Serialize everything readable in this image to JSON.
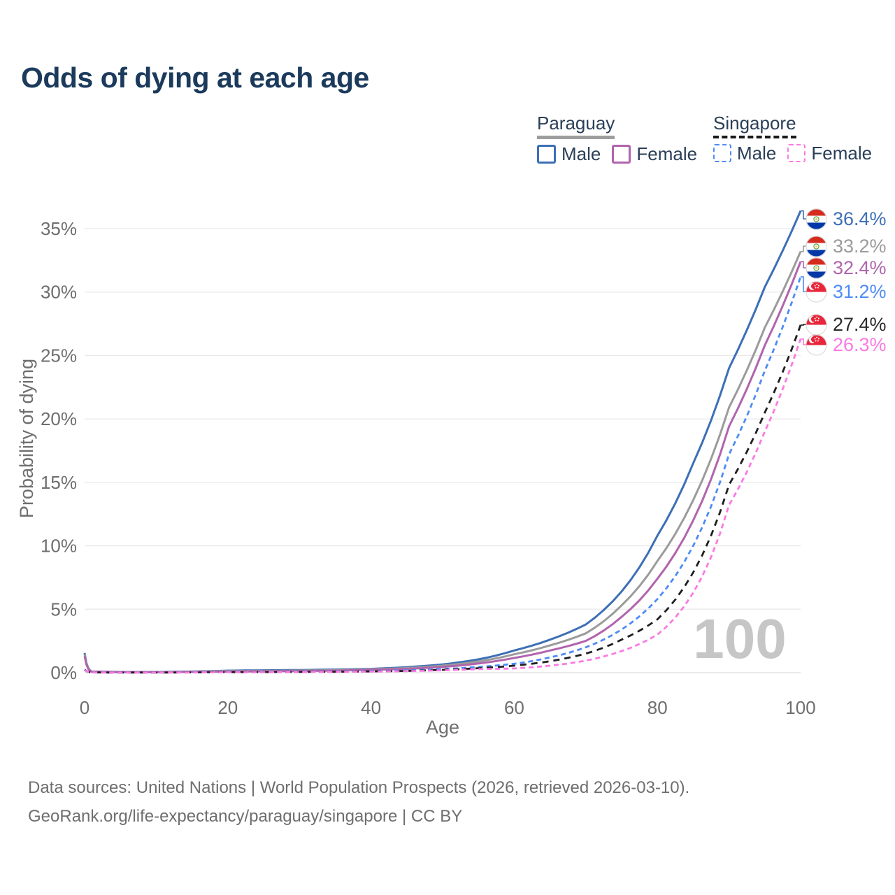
{
  "title": "Odds of dying at each age",
  "watermark": "100",
  "legend": {
    "groups": [
      {
        "country": "Paraguay",
        "line_style": "solid",
        "underline_color": "#9e9e9e",
        "items": [
          {
            "label": "Male",
            "color": "#3d6fb6"
          },
          {
            "label": "Female",
            "color": "#b164ad"
          }
        ]
      },
      {
        "country": "Singapore",
        "line_style": "dashed",
        "underline_color": "#1a1a1a",
        "items": [
          {
            "label": "Male",
            "color": "#4e8cf6"
          },
          {
            "label": "Female",
            "color": "#fb7ae3"
          }
        ]
      }
    ]
  },
  "footer": {
    "line1": "Data sources: United Nations | World Population Prospects (2026, retrieved 2026-03-10).",
    "line2": "GeoRank.org/life-expectancy/paraguay/singapore | CC BY"
  },
  "chart_data": {
    "type": "line",
    "title": "Odds of dying at each age",
    "xlabel": "Age",
    "ylabel": "Probability of dying",
    "xlim": [
      0,
      100
    ],
    "ylim": [
      0,
      37
    ],
    "x_ticks": [
      0,
      20,
      40,
      60,
      80,
      100
    ],
    "y_ticks": [
      0,
      5,
      10,
      15,
      20,
      25,
      30,
      35
    ],
    "y_tick_suffix": "%",
    "grid": "horizontal",
    "legend_position": "top-right",
    "ages": [
      0,
      1,
      5,
      10,
      15,
      20,
      25,
      30,
      35,
      40,
      45,
      50,
      55,
      60,
      65,
      70,
      75,
      80,
      85,
      90,
      95,
      100
    ],
    "series": [
      {
        "name": "Paraguay Male",
        "country": "Paraguay",
        "flag": "py",
        "color": "#3d6fb6",
        "dash": "solid",
        "end_label": "36.4%",
        "values": [
          1.55,
          0.09,
          0.05,
          0.05,
          0.09,
          0.16,
          0.19,
          0.21,
          0.24,
          0.3,
          0.43,
          0.65,
          1.05,
          1.75,
          2.6,
          3.8,
          6.4,
          10.8,
          16.5,
          24.0,
          30.4,
          36.4
        ]
      },
      {
        "name": "Paraguay Both sexes",
        "country": "Paraguay",
        "flag": "py",
        "color": "#9b9b9b",
        "dash": "solid",
        "end_label": "33.2%",
        "values": [
          1.45,
          0.08,
          0.045,
          0.045,
          0.08,
          0.13,
          0.15,
          0.17,
          0.2,
          0.26,
          0.36,
          0.55,
          0.88,
          1.45,
          2.15,
          3.1,
          5.3,
          8.8,
          13.6,
          20.9,
          27.2,
          33.2
        ]
      },
      {
        "name": "Paraguay Female",
        "country": "Paraguay",
        "flag": "py",
        "color": "#b164ad",
        "dash": "solid",
        "end_label": "32.4%",
        "values": [
          1.3,
          0.075,
          0.04,
          0.04,
          0.06,
          0.09,
          0.11,
          0.13,
          0.16,
          0.22,
          0.3,
          0.45,
          0.72,
          1.16,
          1.75,
          2.5,
          4.4,
          7.4,
          12.0,
          19.4,
          25.8,
          32.4
        ]
      },
      {
        "name": "Singapore Male",
        "country": "Singapore",
        "flag": "sg",
        "color": "#4e8cf6",
        "dash": "dashed",
        "end_label": "31.2%",
        "values": [
          0.25,
          0.02,
          0.01,
          0.01,
          0.03,
          0.05,
          0.06,
          0.07,
          0.09,
          0.12,
          0.18,
          0.28,
          0.45,
          0.7,
          1.2,
          2.0,
          3.4,
          5.8,
          10.0,
          17.2,
          23.8,
          31.2
        ]
      },
      {
        "name": "Singapore Both sexes",
        "country": "Singapore",
        "flag": "sg",
        "color": "#1f1f1f",
        "dash": "dashed",
        "end_label": "27.4%",
        "values": [
          0.22,
          0.018,
          0.009,
          0.009,
          0.02,
          0.035,
          0.045,
          0.055,
          0.07,
          0.1,
          0.14,
          0.22,
          0.35,
          0.55,
          0.9,
          1.5,
          2.6,
          4.2,
          7.9,
          14.8,
          20.5,
          27.4
        ]
      },
      {
        "name": "Singapore Female",
        "country": "Singapore",
        "flag": "sg",
        "color": "#fb7ae3",
        "dash": "dashed",
        "end_label": "26.3%",
        "values": [
          0.2,
          0.015,
          0.008,
          0.008,
          0.015,
          0.025,
          0.03,
          0.04,
          0.055,
          0.08,
          0.12,
          0.18,
          0.28,
          0.33,
          0.55,
          0.95,
          1.7,
          3.0,
          6.3,
          13.2,
          19.0,
          26.3
        ]
      }
    ]
  }
}
